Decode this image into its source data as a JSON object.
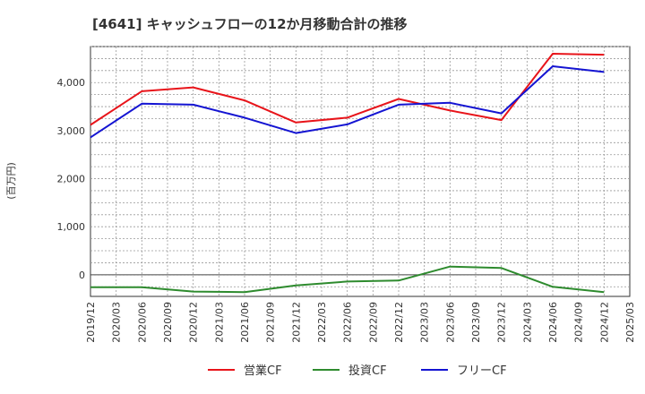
{
  "chart_data": {
    "type": "line",
    "title": "[4641]  キャッシュフローの12か月移動合計の推移",
    "ylabel": "(百万円)",
    "xlabel": "",
    "ylim": [
      -450,
      4750
    ],
    "yticks": [
      0,
      1000,
      2000,
      3000,
      4000
    ],
    "ytick_labels": [
      "0",
      "1,000",
      "2,000",
      "3,000",
      "4,000"
    ],
    "categories": [
      "2019/12",
      "2020/03",
      "2020/06",
      "2020/09",
      "2020/12",
      "2021/03",
      "2021/06",
      "2021/09",
      "2021/12",
      "2022/03",
      "2022/06",
      "2022/09",
      "2022/12",
      "2023/03",
      "2023/06",
      "2023/09",
      "2023/12",
      "2024/03",
      "2024/06",
      "2024/09",
      "2024/12",
      "2025/03"
    ],
    "grid": true,
    "legend_position": "bottom",
    "series": [
      {
        "name": "営業CF",
        "color": "#e8141a",
        "values": [
          3120,
          null,
          3820,
          null,
          3900,
          null,
          3630,
          null,
          3170,
          null,
          3270,
          null,
          3660,
          null,
          3420,
          null,
          3220,
          null,
          4600,
          null,
          4580,
          null
        ]
      },
      {
        "name": "投資CF",
        "color": "#2e8b2e",
        "values": [
          -260,
          null,
          -260,
          null,
          -350,
          null,
          -360,
          null,
          -220,
          null,
          -140,
          null,
          -120,
          null,
          170,
          null,
          140,
          null,
          -250,
          null,
          -360,
          null
        ]
      },
      {
        "name": "フリーCF",
        "color": "#1414d2",
        "values": [
          2860,
          null,
          3560,
          null,
          3540,
          null,
          3270,
          null,
          2950,
          null,
          3130,
          null,
          3540,
          null,
          3580,
          null,
          3360,
          null,
          4340,
          null,
          4220,
          null
        ]
      }
    ]
  }
}
